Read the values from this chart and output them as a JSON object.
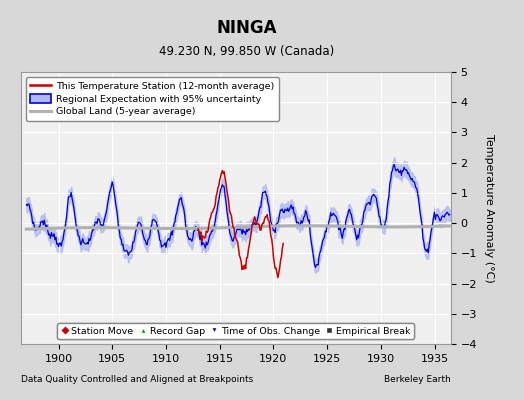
{
  "title": "NINGA",
  "subtitle": "49.230 N, 99.850 W (Canada)",
  "ylabel": "Temperature Anomaly (°C)",
  "xlabel_left": "Data Quality Controlled and Aligned at Breakpoints",
  "xlabel_right": "Berkeley Earth",
  "ylim": [
    -4,
    5
  ],
  "xlim": [
    1896.5,
    1936.5
  ],
  "yticks": [
    -4,
    -3,
    -2,
    -1,
    0,
    1,
    2,
    3,
    4,
    5
  ],
  "xticks": [
    1900,
    1905,
    1910,
    1915,
    1920,
    1925,
    1930,
    1935
  ],
  "bg_color": "#d8d8d8",
  "plot_bg_color": "#f0f0f0",
  "grid_color": "white",
  "blue_line_color": "#0000dd",
  "blue_fill_color": "#b0b8ee",
  "red_line_color": "#cc0000",
  "gray_line_color": "#b0b0b0",
  "legend_items": [
    {
      "label": "This Temperature Station (12-month average)"
    },
    {
      "label": "Regional Expectation with 95% uncertainty"
    },
    {
      "label": "Global Land (5-year average)"
    }
  ],
  "marker_items": [
    {
      "label": "Station Move"
    },
    {
      "label": "Record Gap"
    },
    {
      "label": "Time of Obs. Change"
    },
    {
      "label": "Empirical Break"
    }
  ]
}
